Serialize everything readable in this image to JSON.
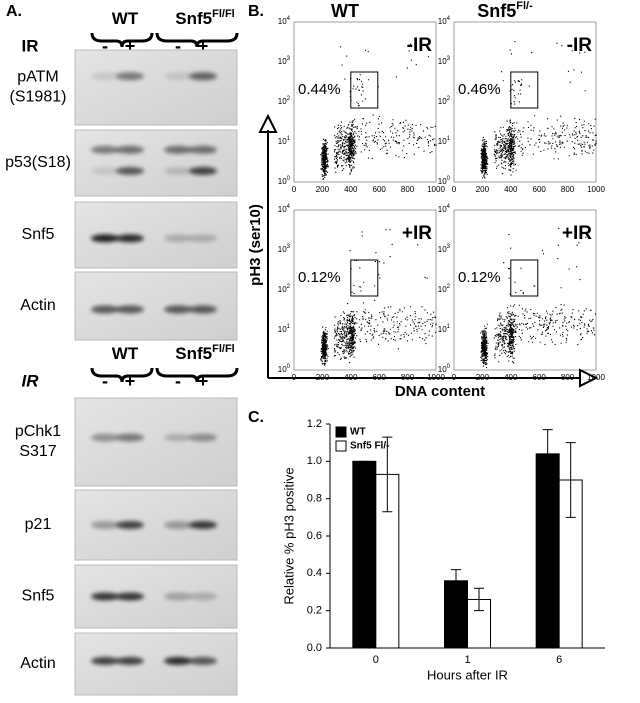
{
  "panel_a": {
    "label": "A.",
    "blot_set_1": {
      "groups": [
        {
          "name": "WT"
        },
        {
          "name": "Snf5",
          "sup": "Fl/Fl"
        }
      ],
      "treatment": "IR",
      "lanes": [
        "-",
        "+",
        "-",
        "+"
      ],
      "blots": [
        {
          "label": [
            "pATM",
            "(S1981)"
          ]
        },
        {
          "label": [
            "p53(S18)"
          ]
        },
        {
          "label": [
            "Snf5"
          ]
        },
        {
          "label": [
            "Actin"
          ]
        }
      ]
    },
    "blot_set_2": {
      "groups": [
        {
          "name": "WT"
        },
        {
          "name": "Snf5",
          "sup": "Fl/Fl"
        }
      ],
      "treatment": "IR",
      "lanes": [
        "-",
        "+",
        "-",
        "+"
      ],
      "blots": [
        {
          "label": [
            "pChk1",
            "S317"
          ]
        },
        {
          "label": [
            "p21"
          ]
        },
        {
          "label": [
            "Snf5"
          ]
        },
        {
          "label": [
            "Actin"
          ]
        }
      ]
    }
  },
  "panel_b": {
    "label": "B.",
    "columns": [
      {
        "name": "WT"
      },
      {
        "name": "Snf5",
        "sup": "Fl/-"
      }
    ],
    "y_axis_label": "pH3 (ser10)",
    "x_axis_label": "DNA content",
    "y_ticks": [
      {
        "base": "10",
        "exp": "0"
      },
      {
        "base": "10",
        "exp": "1"
      },
      {
        "base": "10",
        "exp": "2"
      },
      {
        "base": "10",
        "exp": "3"
      },
      {
        "base": "10",
        "exp": "4"
      }
    ],
    "x_ticks": [
      0,
      200,
      400,
      600,
      800,
      1000
    ],
    "plots": [
      {
        "condition": "-IR",
        "gate_percent": "0.44%"
      },
      {
        "condition": "-IR",
        "gate_percent": "0.46%"
      },
      {
        "condition": "+IR",
        "gate_percent": "0.12%"
      },
      {
        "condition": "+IR",
        "gate_percent": "0.12%"
      }
    ]
  },
  "panel_c": {
    "label": "C."
  },
  "chart_data": {
    "type": "bar",
    "x_label": "Hours after IR",
    "y_label": "Relative % pH3 positive",
    "categories": [
      "0",
      "1",
      "6"
    ],
    "series": [
      {
        "name": "WT",
        "color": "#000000",
        "values": [
          1.0,
          0.36,
          1.04
        ],
        "errors": [
          0,
          0.06,
          0.13
        ]
      },
      {
        "name": "Snf5 Fl/-",
        "color": "#ffffff",
        "values": [
          0.93,
          0.26,
          0.9
        ],
        "errors": [
          0.2,
          0.06,
          0.2
        ]
      }
    ],
    "ylim": [
      0,
      1.2
    ],
    "yticks": [
      {
        "value": 0,
        "label": "0.0"
      },
      0.2,
      0.4,
      0.6,
      0.8,
      {
        "value": 1,
        "label": "1.0"
      },
      1.2
    ],
    "legend": "top-left"
  }
}
